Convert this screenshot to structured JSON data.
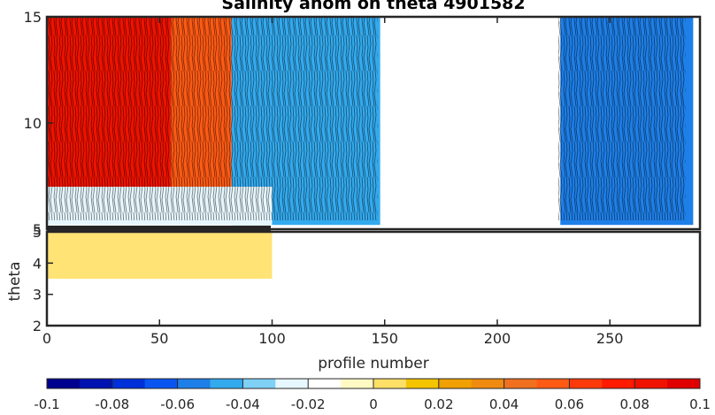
{
  "chart_data": [
    {
      "type": "heatmap",
      "title": "Salinity anom on theta    4901582",
      "xlabel": "profile number",
      "ylabel": "theta",
      "xlim": [
        0,
        290
      ],
      "ylim": [
        2,
        15
      ],
      "x_ticks": [
        0,
        50,
        100,
        150,
        200,
        250
      ],
      "upper_y_ticks": [
        5,
        10,
        15
      ],
      "lower_y_ticks": [
        2,
        3,
        4,
        5
      ],
      "colors": {
        "low": "#00008f",
        "mid": "#ffffff",
        "high": "#ff1a00"
      },
      "regions": [
        {
          "x": [
            0,
            55
          ],
          "theta": [
            6.5,
            15
          ],
          "anomaly": 0.08
        },
        {
          "x": [
            55,
            82
          ],
          "theta": [
            6,
            15
          ],
          "anomaly": 0.05
        },
        {
          "x": [
            82,
            148
          ],
          "theta": [
            5.2,
            15
          ],
          "anomaly": -0.05
        },
        {
          "x": [
            228,
            287
          ],
          "theta": [
            5.2,
            15
          ],
          "anomaly": -0.06
        },
        {
          "x": [
            0,
            100
          ],
          "theta": [
            5.2,
            7
          ],
          "anomaly": -0.03
        },
        {
          "x": [
            0,
            100
          ],
          "theta": [
            3.5,
            5
          ],
          "anomaly": 0.01
        }
      ]
    },
    {
      "type": "colorbar",
      "ticks": [
        "-0.1",
        "-0.08",
        "-0.06",
        "-0.04",
        "-0.02",
        "0",
        "0.02",
        "0.04",
        "0.06",
        "0.08",
        "0.1"
      ],
      "range": [
        -0.1,
        0.1
      ],
      "colors": [
        "#00008f",
        "#0012b0",
        "#0030d8",
        "#0a55f0",
        "#1e7fe8",
        "#33aaee",
        "#7fd0f5",
        "#e6f7ff",
        "#ffffff",
        "#fff9c4",
        "#ffe066",
        "#f5c400",
        "#f0a000",
        "#f08a10",
        "#f07020",
        "#ff5a14",
        "#ff3a0a",
        "#ff1a00",
        "#f01200",
        "#e00000"
      ]
    }
  ]
}
